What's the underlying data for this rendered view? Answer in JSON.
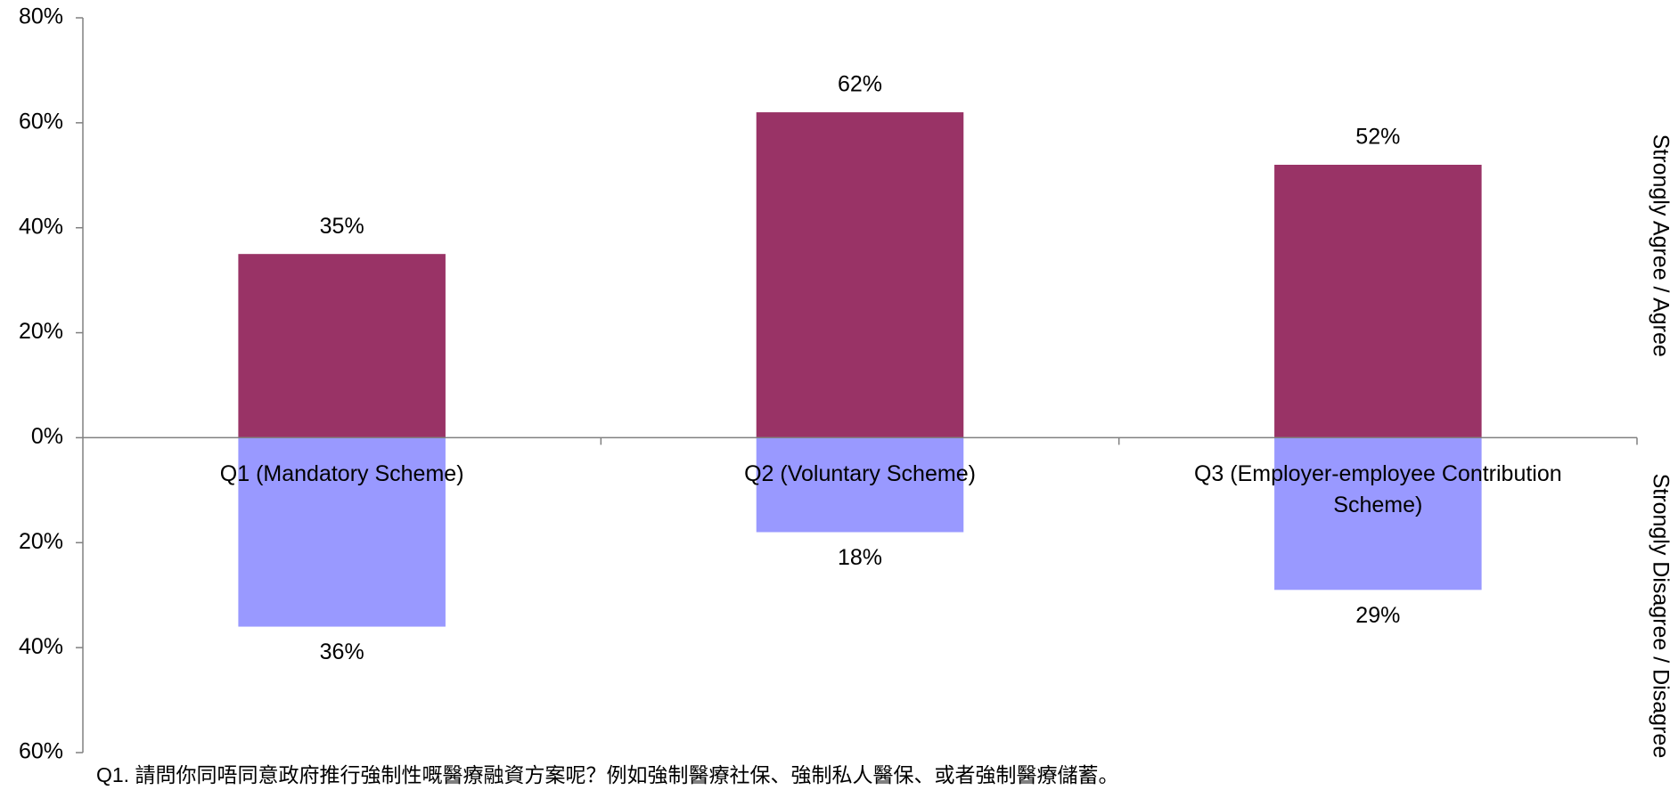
{
  "chart_data": {
    "type": "bar",
    "categories": [
      "Q1 (Mandatory Scheme)",
      "Q2 (Voluntary Scheme)",
      "Q3 (Employer-employee Contribution Scheme)"
    ],
    "series": [
      {
        "name": "Strongly Agree / Agree",
        "color": "#993366",
        "values": [
          35,
          62,
          52
        ],
        "value_labels": [
          "35%",
          "62%",
          "52%"
        ]
      },
      {
        "name": "Strongly Disagree / Disagree",
        "color": "#9999ff",
        "values": [
          -36,
          -18,
          -29
        ],
        "value_labels": [
          "36%",
          "18%",
          "29%"
        ]
      }
    ],
    "ylim": [
      -60,
      80
    ],
    "yticks": [
      {
        "value": -60,
        "label": "60%"
      },
      {
        "value": -40,
        "label": "40%"
      },
      {
        "value": -20,
        "label": "20%"
      },
      {
        "value": 0,
        "label": "0%"
      },
      {
        "value": 20,
        "label": "20%"
      },
      {
        "value": 40,
        "label": "40%"
      },
      {
        "value": 60,
        "label": "60%"
      },
      {
        "value": 80,
        "label": "80%"
      }
    ],
    "grid": false,
    "footnote": "Q1. 請問你同唔同意政府推行強制性嘅醫療融資方案呢？例如強制醫療社保、強制私人醫保、或者強制醫療儲蓄。"
  }
}
